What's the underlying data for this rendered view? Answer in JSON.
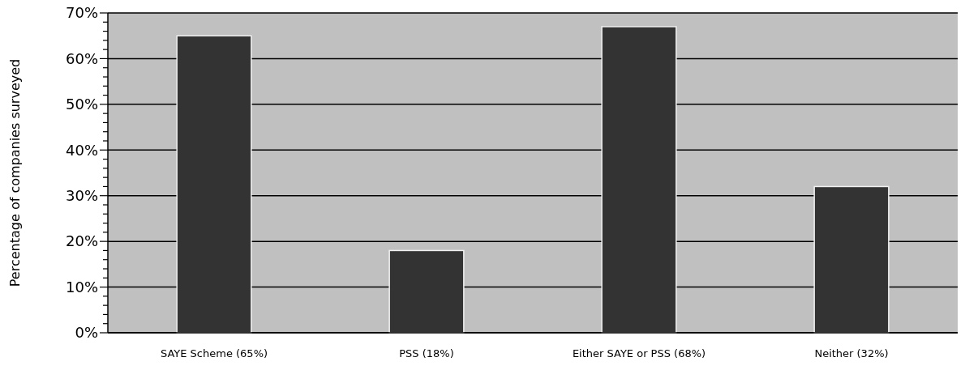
{
  "chart_data": {
    "type": "bar",
    "ylabel": "Percentage of companies surveyed",
    "categories": [
      "SAYE Scheme (65%)",
      "PSS (18%)",
      "Either SAYE or PSS (68%)",
      "Neither (32%)"
    ],
    "values": [
      65,
      18,
      67,
      32
    ],
    "color": "#333333",
    "ylim": [
      0,
      70
    ],
    "yticks": [
      {
        "value": 0,
        "label": "0%"
      },
      {
        "value": 2,
        "label": null
      },
      {
        "value": 4,
        "label": null
      },
      {
        "value": 6,
        "label": null
      },
      {
        "value": 8,
        "label": null
      },
      {
        "value": 10,
        "label": "10%"
      },
      {
        "value": 12,
        "label": null
      },
      {
        "value": 14,
        "label": null
      },
      {
        "value": 16,
        "label": null
      },
      {
        "value": 18,
        "label": null
      },
      {
        "value": 20,
        "label": "20%"
      },
      {
        "value": 22,
        "label": null
      },
      {
        "value": 24,
        "label": null
      },
      {
        "value": 26,
        "label": null
      },
      {
        "value": 28,
        "label": null
      },
      {
        "value": 30,
        "label": "30%"
      },
      {
        "value": 32,
        "label": null
      },
      {
        "value": 34,
        "label": null
      },
      {
        "value": 36,
        "label": null
      },
      {
        "value": 38,
        "label": null
      },
      {
        "value": 40,
        "label": "40%"
      },
      {
        "value": 42,
        "label": null
      },
      {
        "value": 44,
        "label": null
      },
      {
        "value": 46,
        "label": null
      },
      {
        "value": 48,
        "label": null
      },
      {
        "value": 50,
        "label": "50%"
      },
      {
        "value": 52,
        "label": null
      },
      {
        "value": 54,
        "label": null
      },
      {
        "value": 56,
        "label": null
      },
      {
        "value": 58,
        "label": null
      },
      {
        "value": 60,
        "label": "60%"
      },
      {
        "value": 62,
        "label": null
      },
      {
        "value": 64,
        "label": null
      },
      {
        "value": 66,
        "label": null
      },
      {
        "value": 68,
        "label": null
      },
      {
        "value": 70,
        "label": "70%"
      }
    ],
    "grid": "y"
  }
}
